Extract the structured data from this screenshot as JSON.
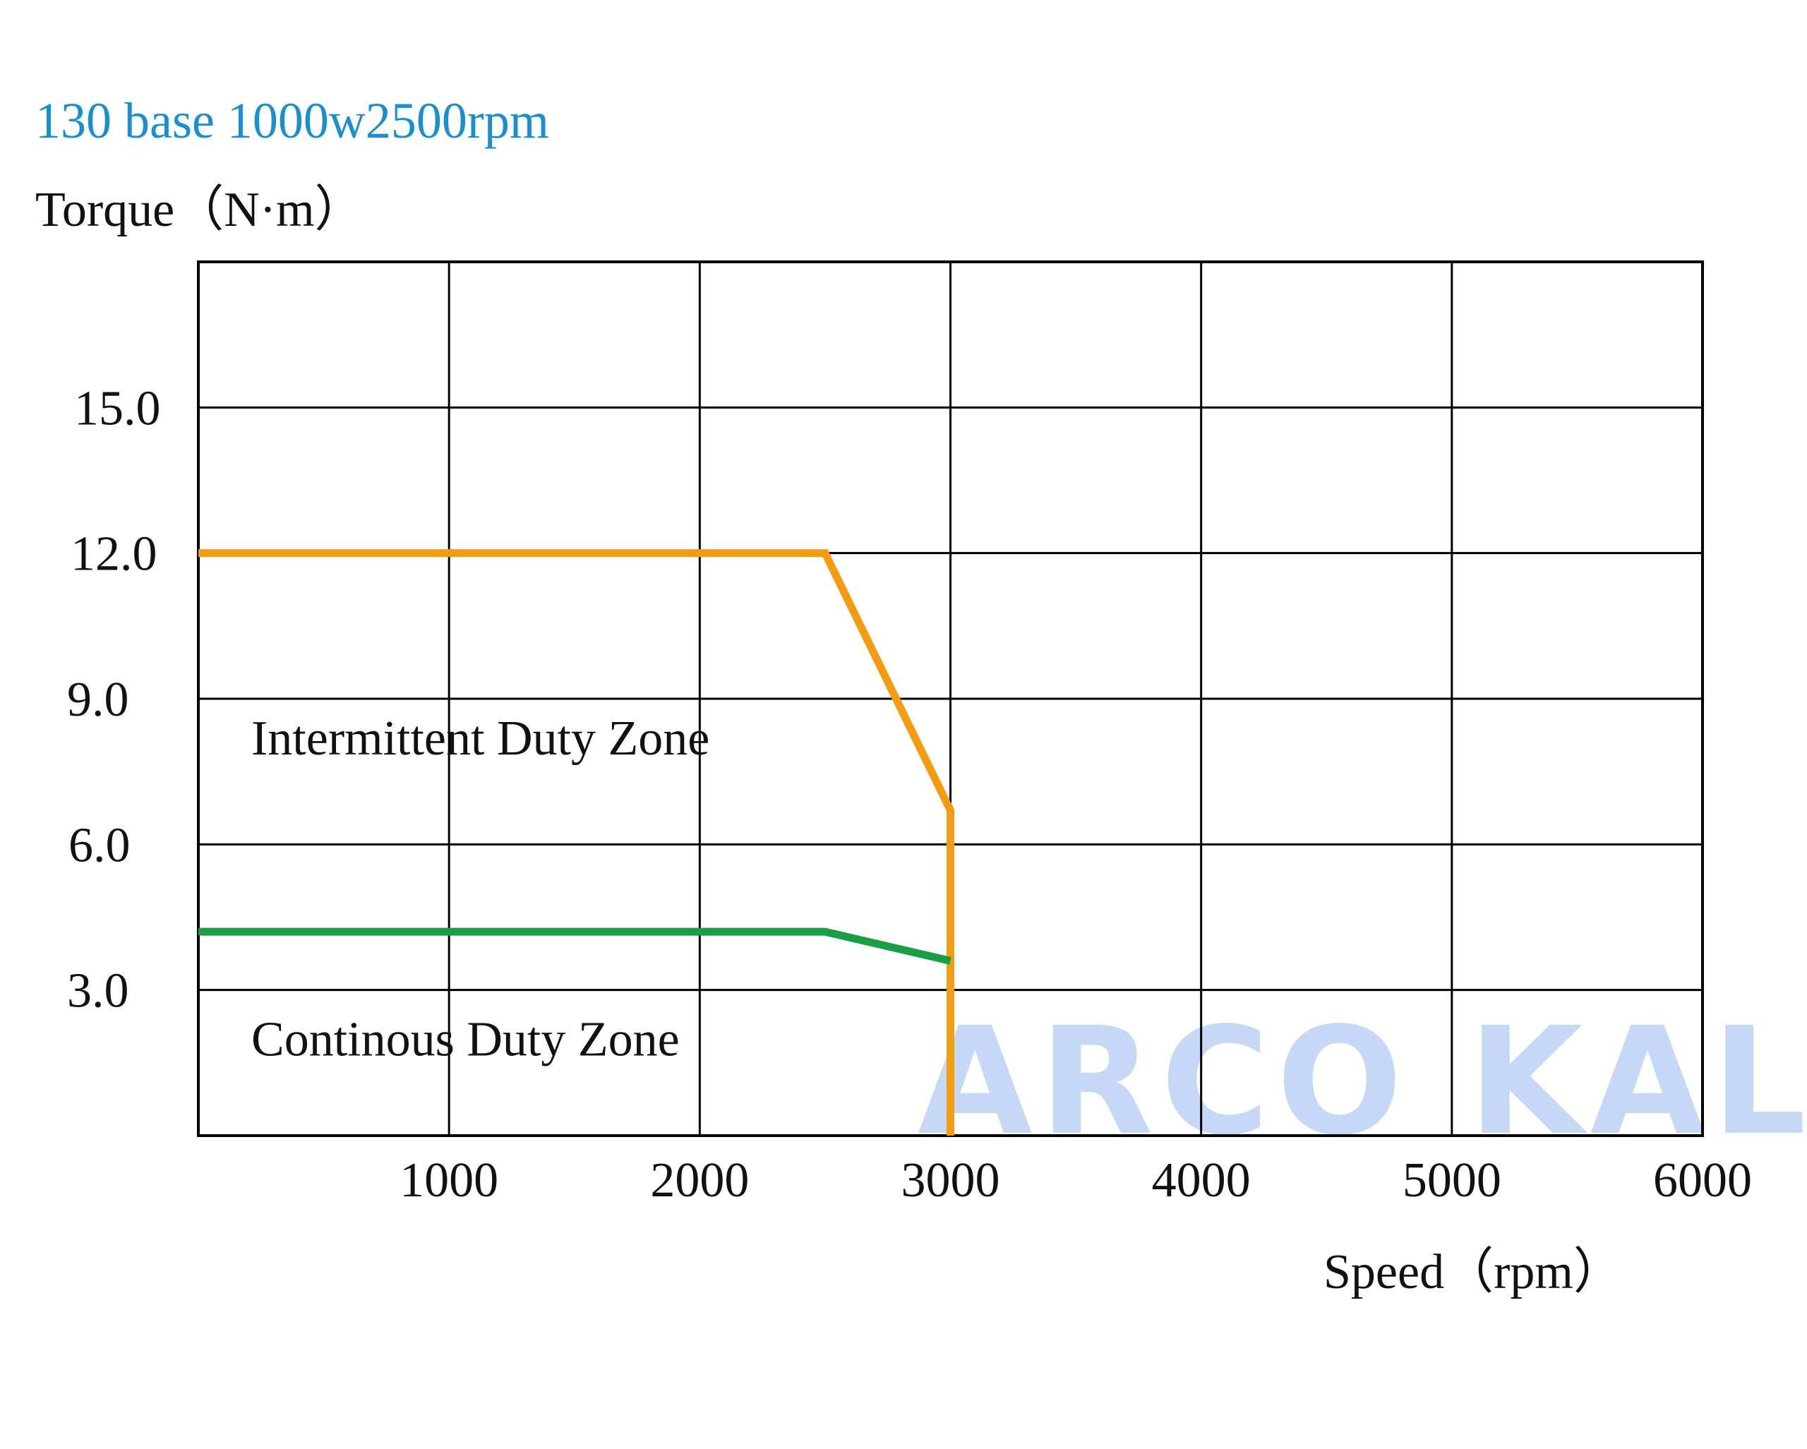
{
  "chart_data": {
    "type": "line",
    "title": "130 base 1000w2500rpm",
    "xlabel": "Speed（rpm）",
    "ylabel": "Torque（N·m）",
    "xlim": [
      0,
      6000
    ],
    "ylim": [
      0,
      18
    ],
    "x_ticks": [
      1000,
      2000,
      3000,
      4000,
      5000,
      6000
    ],
    "x_tick_labels": [
      "1000",
      "2000",
      "3000",
      "4000",
      "5000",
      "6000"
    ],
    "y_ticks": [
      3,
      6,
      9,
      12,
      15
    ],
    "y_tick_labels": [
      "3.0",
      "6.0",
      "9.0",
      "12.0",
      "15.0"
    ],
    "grid": true,
    "series": [
      {
        "color": "#f39c12",
        "points": [
          {
            "x": 0,
            "y": 12.0
          },
          {
            "x": 2500,
            "y": 12.0
          },
          {
            "x": 3000,
            "y": 6.7
          },
          {
            "x": 3000,
            "y": 0
          }
        ]
      },
      {
        "color": "#1a9e45",
        "points": [
          {
            "x": 0,
            "y": 4.2
          },
          {
            "x": 2500,
            "y": 4.2
          },
          {
            "x": 3000,
            "y": 3.6
          }
        ]
      }
    ],
    "annotations": [
      {
        "text": "Intermittent Duty Zone",
        "x": 200,
        "y": 8.2
      },
      {
        "text": "Continous Duty Zone",
        "x": 200,
        "y": 2.0
      }
    ],
    "watermark": "ARCO KALA",
    "colors": {
      "title": "#1a8fd0",
      "grid": "#000000",
      "watermark": "#c5d9f7"
    }
  }
}
